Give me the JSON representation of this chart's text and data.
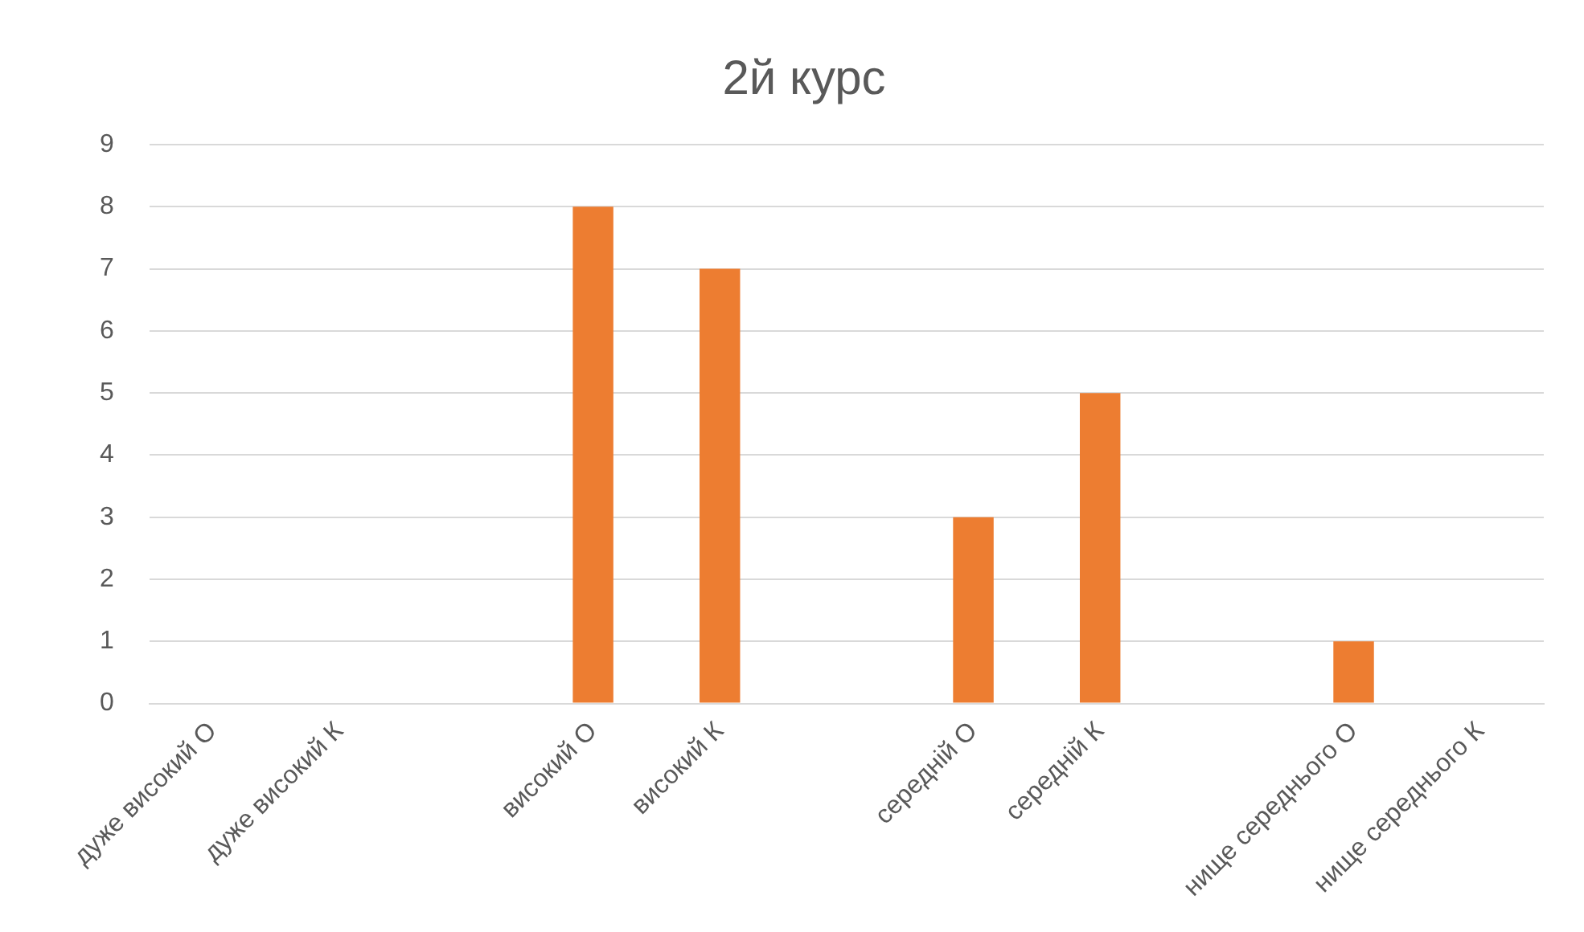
{
  "chart_data": {
    "type": "bar",
    "title": "2й курс",
    "categories": [
      "дуже високий О",
      "дуже високий К",
      null,
      "високий О",
      "високий К",
      null,
      "середній О",
      "середній К",
      null,
      "нище середнього О",
      "нище середнього К"
    ],
    "values": [
      0,
      0,
      null,
      8,
      7,
      null,
      3,
      5,
      null,
      1,
      0
    ],
    "color": "#ed7d31",
    "ylim": [
      0,
      9
    ],
    "yticks": [
      0,
      1,
      2,
      3,
      4,
      5,
      6,
      7,
      8,
      9
    ],
    "grid": "y",
    "legend": false
  }
}
